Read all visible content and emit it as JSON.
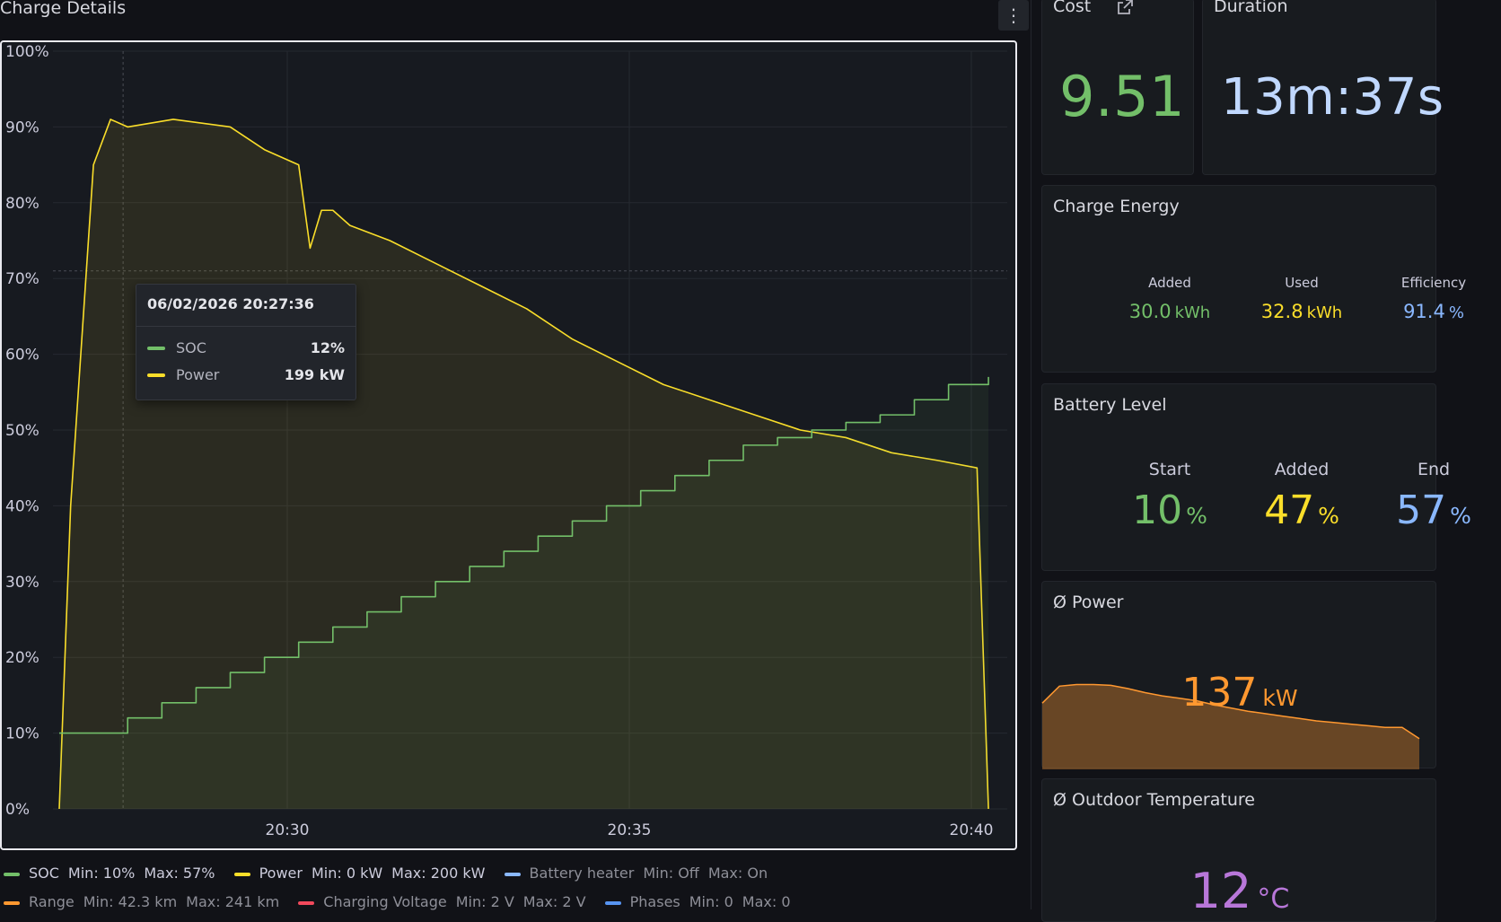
{
  "charge_details": {
    "title": "Charge Details",
    "menu_icon": "kebab-menu-icon"
  },
  "tooltip": {
    "time": "06/02/2026 20:27:36",
    "rows": [
      {
        "name": "SOC",
        "value": "12%",
        "color": "#73bf69"
      },
      {
        "name": "Power",
        "value": "199 kW",
        "color": "#fade2a"
      }
    ]
  },
  "legend": {
    "row1": [
      {
        "name": "SOC",
        "min": "Min: 10%",
        "max": "Max: 57%",
        "color": "#73bf69",
        "dim": false
      },
      {
        "name": "Power",
        "min": "Min: 0 kW",
        "max": "Max: 200 kW",
        "color": "#fade2a",
        "dim": false
      },
      {
        "name": "Battery heater",
        "min": "Min: Off",
        "max": "Max: On",
        "color": "#8ab8ff",
        "dim": true
      }
    ],
    "row2": [
      {
        "name": "Range",
        "min": "Min: 42.3 km",
        "max": "Max: 241 km",
        "color": "#ff9830",
        "dim": true
      },
      {
        "name": "Charging Voltage",
        "min": "Min: 2 V",
        "max": "Max: 2 V",
        "color": "#f2495c",
        "dim": true
      },
      {
        "name": "Phases",
        "min": "Min: 0",
        "max": "Max: 0",
        "color": "#5794f2",
        "dim": true
      }
    ]
  },
  "cost": {
    "title": "Cost",
    "value": "9.51",
    "link_icon": "external-link-icon",
    "color": "#73bf69"
  },
  "duration": {
    "title": "Duration",
    "value": "13m:37s",
    "color": "#c0d8ff"
  },
  "charge_energy": {
    "title": "Charge Energy",
    "items": [
      {
        "label": "Added",
        "value": "30.0",
        "unit": "kWh",
        "color": "#73bf69"
      },
      {
        "label": "Used",
        "value": "32.8",
        "unit": "kWh",
        "color": "#fade2a"
      },
      {
        "label": "Efficiency",
        "value": "91.4",
        "unit": "%",
        "color": "#8ab8ff"
      }
    ]
  },
  "battery_level": {
    "title": "Battery Level",
    "items": [
      {
        "label": "Start",
        "value": "10",
        "unit": "%",
        "color": "#73bf69"
      },
      {
        "label": "Added",
        "value": "47",
        "unit": "%",
        "color": "#fade2a"
      },
      {
        "label": "End",
        "value": "57",
        "unit": "%",
        "color": "#8ab8ff"
      }
    ]
  },
  "avg_power": {
    "title": "Ø Power",
    "value": "137",
    "unit": "kW",
    "color": "#ff9830",
    "sparkline": [
      0.72,
      0.93,
      0.95,
      0.95,
      0.94,
      0.9,
      0.85,
      0.81,
      0.78,
      0.75,
      0.7,
      0.66,
      0.62,
      0.59,
      0.56,
      0.53,
      0.5,
      0.48,
      0.46,
      0.44,
      0.42,
      0.42,
      0.28
    ]
  },
  "outdoor_temp": {
    "title": "Ø Outdoor Temperature",
    "value": "12",
    "unit": "°C",
    "color": "#b877d9"
  },
  "chart_data": {
    "type": "line",
    "y_ticks": [
      "100%",
      "90%",
      "80%",
      "70%",
      "60%",
      "50%",
      "40%",
      "30%",
      "20%",
      "10%",
      "0%"
    ],
    "x_ticks": [
      "20:30",
      "20:35",
      "20:40"
    ],
    "ylim": [
      0,
      100
    ],
    "series": [
      {
        "name": "SOC",
        "color": "#73bf69",
        "x": [
          "20:26:40",
          "20:27:10",
          "20:27:40",
          "20:28:10",
          "20:28:40",
          "20:29:10",
          "20:29:40",
          "20:30:10",
          "20:30:40",
          "20:31:10",
          "20:31:40",
          "20:32:10",
          "20:32:40",
          "20:33:10",
          "20:33:40",
          "20:34:10",
          "20:34:40",
          "20:35:10",
          "20:35:40",
          "20:36:10",
          "20:36:40",
          "20:37:10",
          "20:37:40",
          "20:38:10",
          "20:38:40",
          "20:39:10",
          "20:39:40",
          "20:40:15"
        ],
        "values": [
          10,
          10,
          12,
          14,
          16,
          18,
          20,
          22,
          24,
          26,
          28,
          30,
          32,
          34,
          36,
          38,
          40,
          42,
          44,
          46,
          48,
          49,
          50,
          51,
          52,
          54,
          56,
          57
        ]
      },
      {
        "name": "Power",
        "color": "#fade2a",
        "unit": "%",
        "x": [
          "20:26:40",
          "20:26:50",
          "20:27:10",
          "20:27:25",
          "20:27:40",
          "20:28:20",
          "20:29:10",
          "20:29:40",
          "20:30:10",
          "20:30:20",
          "20:30:30",
          "20:30:40",
          "20:30:55",
          "20:31:30",
          "20:32:10",
          "20:32:50",
          "20:33:30",
          "20:34:10",
          "20:34:50",
          "20:35:30",
          "20:36:10",
          "20:36:50",
          "20:37:30",
          "20:38:10",
          "20:38:50",
          "20:39:30",
          "20:40:05",
          "20:40:15"
        ],
        "values": [
          0,
          40,
          85,
          91,
          90,
          91,
          90,
          87,
          85,
          74,
          79,
          79,
          77,
          75,
          72,
          69,
          66,
          62,
          59,
          56,
          54,
          52,
          50,
          49,
          47,
          46,
          45,
          0
        ]
      }
    ]
  }
}
